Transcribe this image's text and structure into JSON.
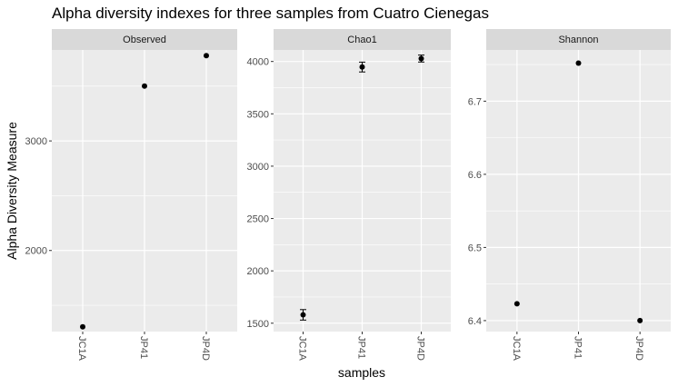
{
  "chart_data": {
    "type": "scatter",
    "title": "Alpha diversity indexes for three samples from Cuatro Cienegas",
    "xlabel": "samples",
    "ylabel": "Alpha Diversity Measure",
    "categories": [
      "JC1A",
      "JP41",
      "JP4D"
    ],
    "grid": true,
    "colors": {
      "panel_bg": "#ebebeb",
      "strip_bg": "#d9d9d9",
      "grid": "#ffffff",
      "point": "#000000"
    },
    "facets": [
      {
        "name": "Observed",
        "ylim": [
          1260,
          3830
        ],
        "yticks": [
          2000,
          3000
        ],
        "values": [
          1304,
          3500,
          3778
        ]
      },
      {
        "name": "Chao1",
        "ylim": [
          1420,
          4110
        ],
        "yticks": [
          1500,
          2000,
          2500,
          3000,
          3500,
          4000
        ],
        "values": [
          1580,
          3947,
          4028
        ],
        "errors": [
          [
            1530,
            1630
          ],
          [
            3900,
            3994
          ],
          [
            3995,
            4061
          ]
        ]
      },
      {
        "name": "Shannon",
        "ylim": [
          6.385,
          6.77
        ],
        "yticks": [
          6.4,
          6.5,
          6.6,
          6.7
        ],
        "values": [
          6.423,
          6.752,
          6.4
        ]
      }
    ]
  }
}
